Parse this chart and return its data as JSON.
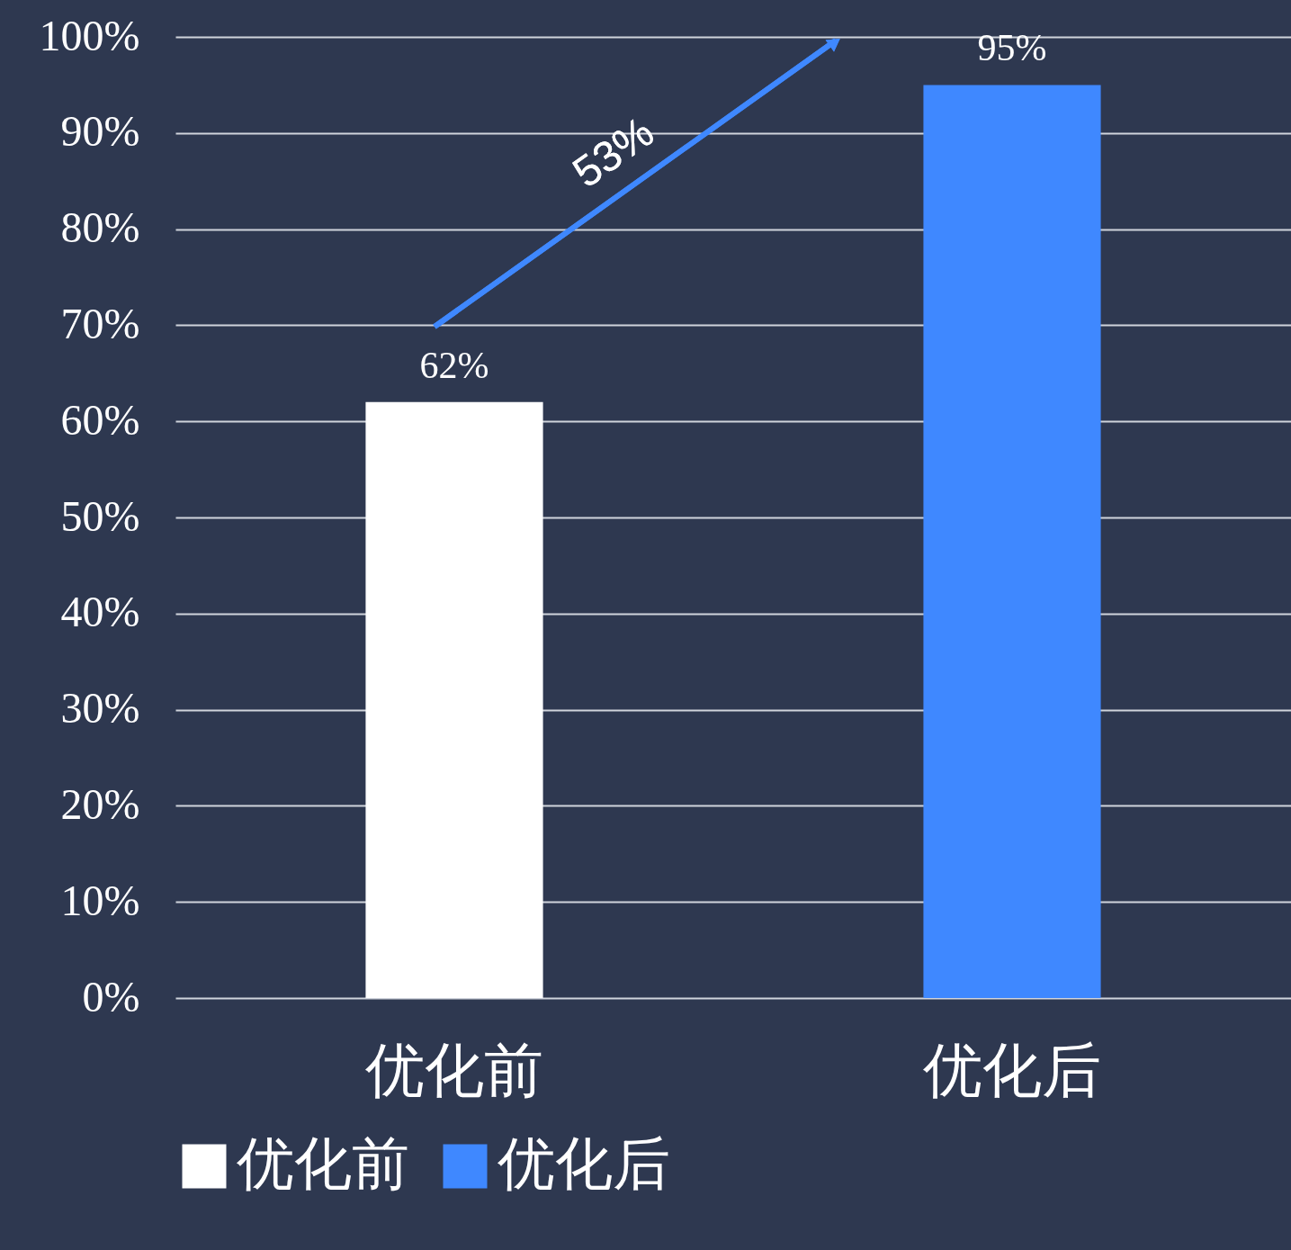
{
  "chart_data": {
    "type": "bar",
    "categories": [
      "优化前",
      "优化后"
    ],
    "series": [
      {
        "name": "优化前",
        "color": "#ffffff",
        "values": [
          62,
          null
        ],
        "value_labels": [
          "62%",
          null
        ]
      },
      {
        "name": "优化后",
        "color": "#3f88ff",
        "values": [
          null,
          95
        ],
        "value_labels": [
          null,
          "95%"
        ]
      }
    ],
    "ylim": [
      0,
      100
    ],
    "yticks": [
      {
        "value": 0,
        "label": "0%"
      },
      {
        "value": 10,
        "label": "10%"
      },
      {
        "value": 20,
        "label": "20%"
      },
      {
        "value": 30,
        "label": "30%"
      },
      {
        "value": 40,
        "label": "40%"
      },
      {
        "value": 50,
        "label": "50%"
      },
      {
        "value": 60,
        "label": "60%"
      },
      {
        "value": 70,
        "label": "70%"
      },
      {
        "value": 80,
        "label": "80%"
      },
      {
        "value": 90,
        "label": "90%"
      },
      {
        "value": 100,
        "label": "100%"
      }
    ],
    "grid": "y",
    "legend": "bottom",
    "annotations": [
      "53%"
    ]
  }
}
